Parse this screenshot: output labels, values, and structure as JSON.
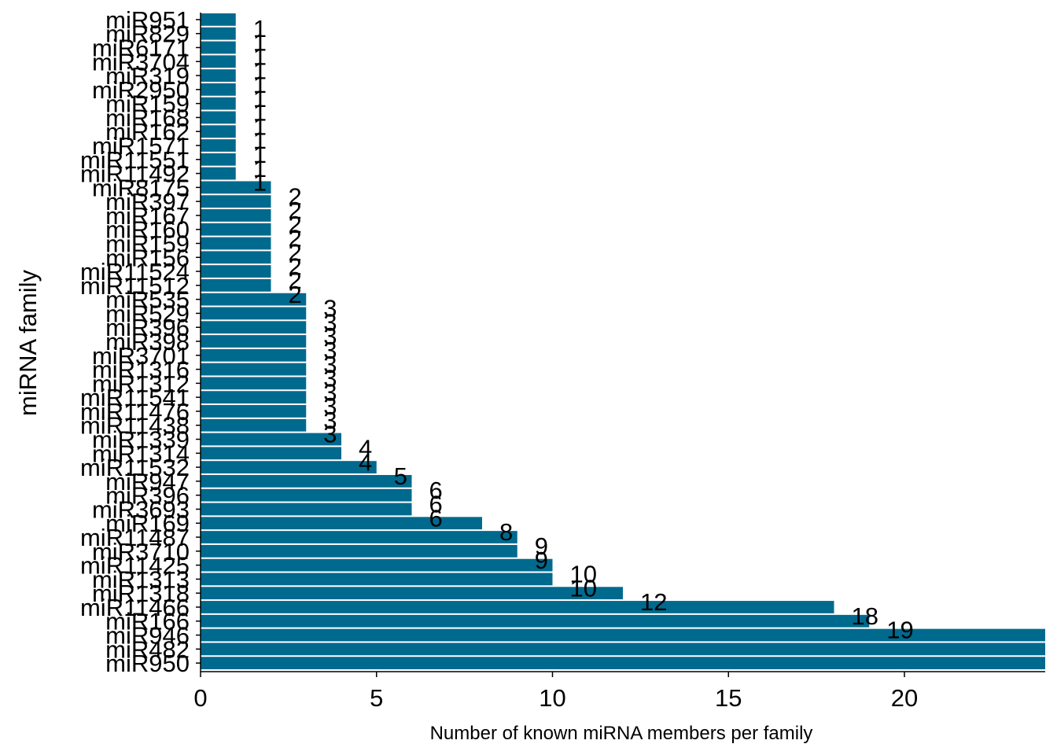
{
  "chart_data": {
    "type": "bar",
    "orientation": "horizontal",
    "xlabel": "Number of known miRNA members per family",
    "ylabel": "miRNA family",
    "xlim": [
      0,
      24
    ],
    "x_ticks": [
      0,
      5,
      10,
      15,
      20
    ],
    "grid": false,
    "bar_color": "#006a8e",
    "categories": [
      "miR951",
      "miR829",
      "miR6171",
      "miR3704",
      "miR319",
      "miR2950",
      "miR159",
      "miR168",
      "miR162",
      "miR1571",
      "miR11551",
      "miR11492",
      "miR8175",
      "miR397",
      "miR167",
      "miR160",
      "miR159",
      "miR156",
      "miR11524",
      "miR11512",
      "miR535",
      "miR529",
      "miR396",
      "miR398",
      "miR3701",
      "miR1316",
      "miR1312",
      "miR11541",
      "miR11476",
      "miR11438",
      "miR1339",
      "miR1314",
      "miR11532",
      "miR947",
      "miR396",
      "miR3693",
      "miR169",
      "miR11487",
      "miR3710",
      "miR11425",
      "miR1313",
      "miR1318",
      "miR11466",
      "miR166",
      "miR946",
      "miR482",
      "miR950"
    ],
    "values": [
      1,
      1,
      1,
      1,
      1,
      1,
      1,
      1,
      1,
      1,
      1,
      1,
      2,
      2,
      2,
      2,
      2,
      2,
      2,
      2,
      3,
      3,
      3,
      3,
      3,
      3,
      3,
      3,
      3,
      3,
      4,
      4,
      5,
      6,
      6,
      6,
      8,
      9,
      9,
      10,
      10,
      12,
      18,
      19,
      24,
      24,
      24
    ],
    "value_labels": [
      "1",
      "1",
      "1",
      "1",
      "1",
      "1",
      "1",
      "1",
      "1",
      "1",
      "1",
      "1",
      "2",
      "2",
      "2",
      "2",
      "2",
      "2",
      "2",
      "2",
      "3",
      "3",
      "3",
      "3",
      "3",
      "3",
      "3",
      "3",
      "3",
      "3",
      "4",
      "4",
      "5",
      "6",
      "6",
      "6",
      "8",
      "9",
      "9",
      "10",
      "10",
      "12",
      "18",
      "19",
      "",
      "",
      ""
    ]
  }
}
